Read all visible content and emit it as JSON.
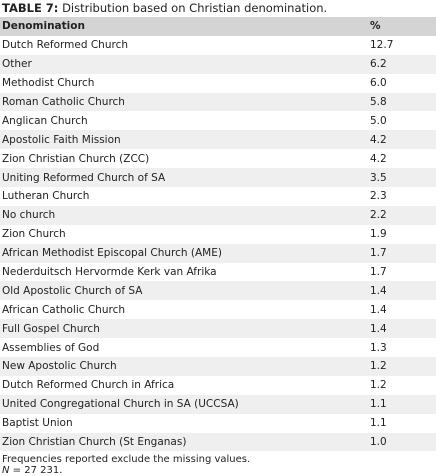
{
  "caption": {
    "label": "TABLE 7:",
    "text": "Distribution based on Christian denomination."
  },
  "table": {
    "header": [
      "Denomination",
      "%"
    ],
    "rows": [
      [
        "Dutch Reformed Church",
        "12.7"
      ],
      [
        "Other",
        "6.2"
      ],
      [
        "Methodist Church",
        "6.0"
      ],
      [
        "Roman Catholic Church",
        "5.8"
      ],
      [
        "Anglican Church",
        "5.0"
      ],
      [
        "Apostolic Faith Mission",
        "4.2"
      ],
      [
        "Zion Christian Church (ZCC)",
        "4.2"
      ],
      [
        "Uniting Reformed Church of SA",
        "3.5"
      ],
      [
        "Lutheran Church",
        "2.3"
      ],
      [
        "No church",
        "2.2"
      ],
      [
        "Zion Church",
        "1.9"
      ],
      [
        "African Methodist Episcopal Church (AME)",
        "1.7"
      ],
      [
        "Nederduitsch Hervormde Kerk van Afrika",
        "1.7"
      ],
      [
        "Old Apostolic Church of SA",
        "1.4"
      ],
      [
        "African Catholic Church",
        "1.4"
      ],
      [
        "Full Gospel Church",
        "1.4"
      ],
      [
        "Assemblies of God",
        "1.3"
      ],
      [
        "New Apostolic Church",
        "1.2"
      ],
      [
        "Dutch Reformed Church in Africa",
        "1.2"
      ],
      [
        "United Congregational Church in SA (UCCSA)",
        "1.1"
      ],
      [
        "Baptist Union",
        "1.1"
      ],
      [
        "Zion Christian Church (St Enganas)",
        "1.0"
      ]
    ]
  },
  "footnotes": {
    "note": "Frequencies reported exclude the missing values.",
    "n_symbol": "N",
    "n_text": "= 27 231."
  }
}
